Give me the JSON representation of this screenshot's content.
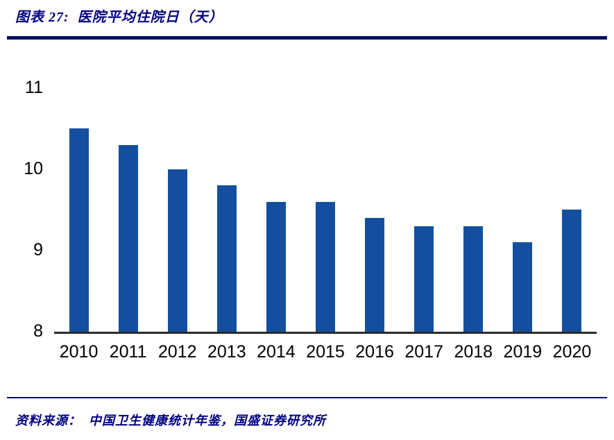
{
  "header": {
    "title": "图表 27:  医院平均住院日（天）"
  },
  "footer": {
    "source": "资料来源：  中国卫生健康统计年鉴，国盛证券研究所"
  },
  "colors": {
    "bar": "#134f9e",
    "accent_navy": "#000080",
    "rule_navy": "#001060",
    "axis": "#2b2b2b"
  },
  "chart_data": {
    "type": "bar",
    "title": "医院平均住院日（天）",
    "categories": [
      "2010",
      "2011",
      "2012",
      "2013",
      "2014",
      "2015",
      "2016",
      "2017",
      "2018",
      "2019",
      "2020"
    ],
    "values": [
      10.5,
      10.3,
      10.0,
      9.8,
      9.6,
      9.6,
      9.4,
      9.3,
      9.3,
      9.1,
      9.5
    ],
    "xlabel": "",
    "ylabel": "",
    "ylim": [
      8,
      11
    ],
    "yticks": [
      8,
      9,
      10,
      11
    ],
    "grid": false,
    "legend": "none",
    "bar_color": "#134f9e"
  }
}
